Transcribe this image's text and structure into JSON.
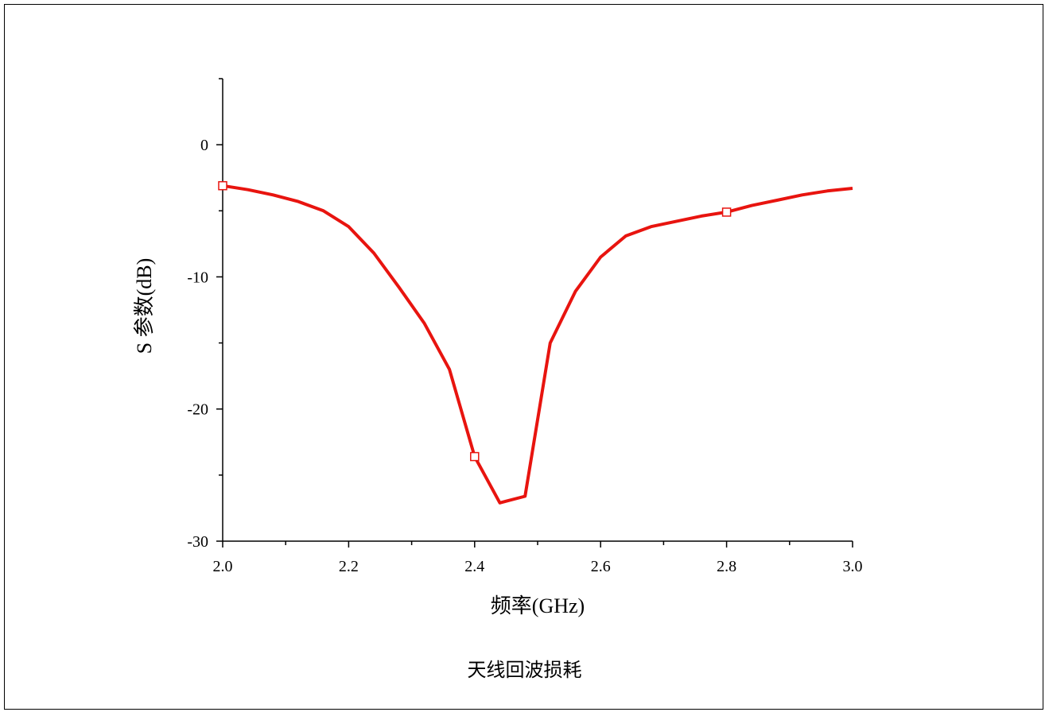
{
  "caption": "天线回波损耗",
  "colors": {
    "series": "#e8140f",
    "axis": "#000000",
    "background": "#ffffff"
  },
  "chart_data": {
    "type": "line",
    "xlabel": "频率(GHz)",
    "ylabel": "S 参数(dB)",
    "xlim": [
      2.0,
      3.0
    ],
    "ylim": [
      -30,
      5
    ],
    "x_ticks": [
      "2.0",
      "2.2",
      "2.4",
      "2.6",
      "2.8",
      "3.0"
    ],
    "y_ticks": [
      "0",
      "-10",
      "-20",
      "-30"
    ],
    "grid": false,
    "legend": "none",
    "series": [
      {
        "color": "#e8140f",
        "marker": "open-square",
        "x": [
          2.0,
          2.04,
          2.08,
          2.12,
          2.16,
          2.2,
          2.24,
          2.28,
          2.32,
          2.36,
          2.4,
          2.44,
          2.48,
          2.52,
          2.56,
          2.6,
          2.64,
          2.68,
          2.72,
          2.76,
          2.8,
          2.84,
          2.88,
          2.92,
          2.96,
          3.0
        ],
        "y": [
          -3.1,
          -3.4,
          -3.8,
          -4.3,
          -5.0,
          -6.2,
          -8.2,
          -10.8,
          -13.5,
          -17.0,
          -23.6,
          -27.1,
          -26.6,
          -15.0,
          -11.1,
          -8.5,
          -6.9,
          -6.2,
          -5.8,
          -5.4,
          -5.1,
          -4.6,
          -4.2,
          -3.8,
          -3.5,
          -3.3
        ],
        "marker_x": [
          2.0,
          2.4,
          2.8
        ]
      }
    ]
  }
}
